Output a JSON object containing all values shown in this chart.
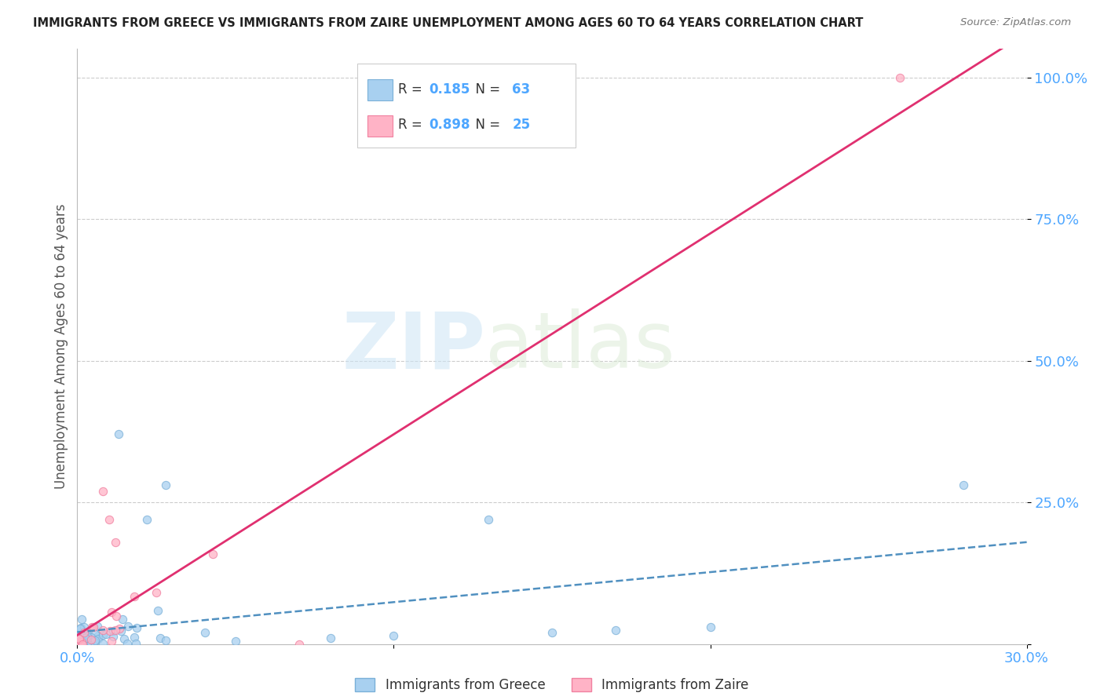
{
  "title": "IMMIGRANTS FROM GREECE VS IMMIGRANTS FROM ZAIRE UNEMPLOYMENT AMONG AGES 60 TO 64 YEARS CORRELATION CHART",
  "source": "Source: ZipAtlas.com",
  "ylabel": "Unemployment Among Ages 60 to 64 years",
  "xlim": [
    0.0,
    0.3
  ],
  "ylim": [
    0.0,
    1.05
  ],
  "greece_color": "#a8d0f0",
  "zaire_color": "#ffb3c6",
  "greece_edge": "#7ab0d8",
  "zaire_edge": "#f080a0",
  "greece_line_color": "#5090c0",
  "zaire_line_color": "#e03070",
  "greece_R": 0.185,
  "greece_N": 63,
  "zaire_R": 0.898,
  "zaire_N": 25,
  "legend_label_greece": "Immigrants from Greece",
  "legend_label_zaire": "Immigrants from Zaire",
  "watermark_zip": "ZIP",
  "watermark_atlas": "atlas",
  "background_color": "#ffffff",
  "grid_color": "#cccccc",
  "title_color": "#222222",
  "axis_label_color": "#555555",
  "tick_color": "#4da6ff",
  "legend_text_color": "#333333",
  "legend_value_color": "#4da6ff",
  "source_color": "#777777"
}
